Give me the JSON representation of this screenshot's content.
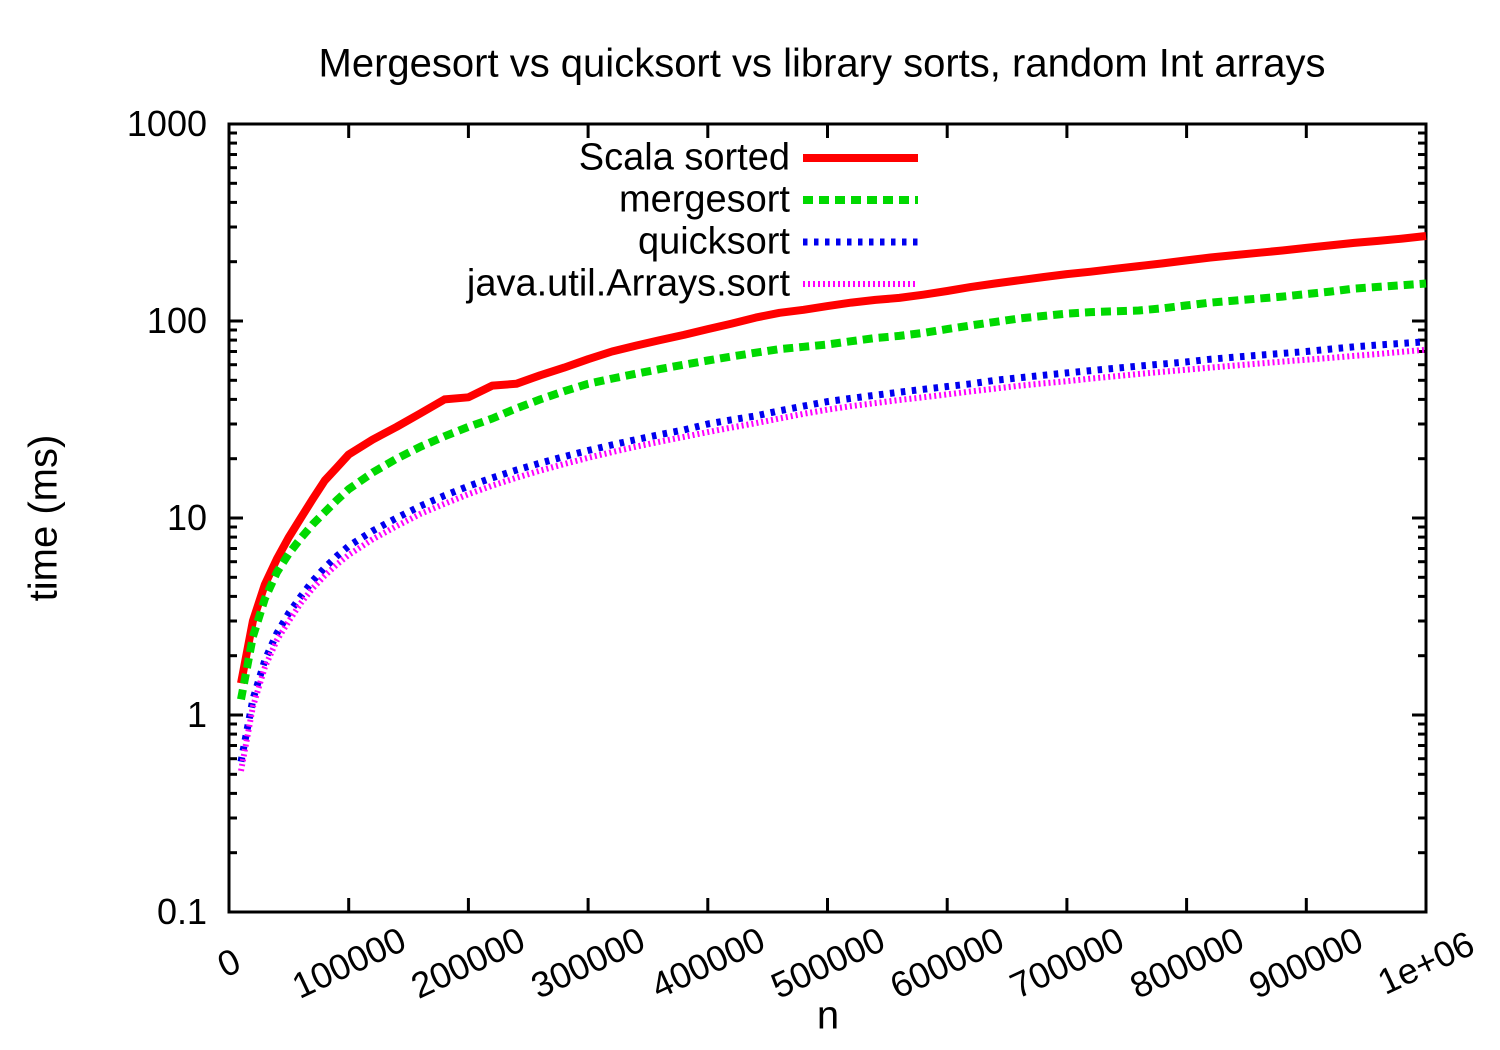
{
  "chart_data": {
    "type": "line",
    "title": "Mergesort vs quicksort vs library sorts, random Int arrays",
    "xlabel": "n",
    "ylabel": "time (ms)",
    "grid": false,
    "legend_position": "inside top, right of center, labels left of line samples",
    "x_axis": {
      "scale": "linear",
      "min": 0,
      "max": 1000000,
      "ticks": [
        0,
        100000,
        200000,
        300000,
        400000,
        500000,
        600000,
        700000,
        800000,
        900000,
        1000000
      ],
      "tick_labels": [
        "0",
        "100000",
        "200000",
        "300000",
        "400000",
        "500000",
        "600000",
        "700000",
        "800000",
        "900000",
        "1e+06"
      ]
    },
    "y_axis": {
      "scale": "log",
      "min": 0.1,
      "max": 1000,
      "ticks": [
        1000,
        100,
        10,
        1,
        0.1
      ],
      "tick_labels": [
        "1000",
        "100",
        "10",
        "1",
        "0.1"
      ],
      "minor_ticks": "logarithmic 2-9 within each decade"
    },
    "x": [
      10000,
      20000,
      30000,
      40000,
      50000,
      60000,
      70000,
      80000,
      90000,
      100000,
      120000,
      140000,
      160000,
      180000,
      200000,
      220000,
      240000,
      260000,
      280000,
      300000,
      320000,
      340000,
      360000,
      380000,
      400000,
      420000,
      440000,
      460000,
      480000,
      500000,
      520000,
      540000,
      560000,
      580000,
      600000,
      620000,
      640000,
      660000,
      680000,
      700000,
      720000,
      740000,
      760000,
      780000,
      800000,
      820000,
      840000,
      860000,
      880000,
      900000,
      920000,
      940000,
      960000,
      980000,
      1000000
    ],
    "series": [
      {
        "name": "Scala sorted",
        "color": "#ff0000",
        "style": "solid",
        "dash": "",
        "width": 8,
        "values": [
          1.45,
          3.0,
          4.6,
          6.2,
          8.0,
          10.0,
          12.5,
          15.5,
          18.0,
          21.0,
          25,
          29,
          34,
          40,
          41,
          47,
          48,
          53,
          58,
          64,
          70,
          75,
          80,
          85,
          91,
          97,
          104,
          110,
          114,
          119,
          124,
          128,
          131,
          136,
          142,
          149,
          155,
          161,
          167,
          173,
          178,
          184,
          190,
          196,
          203,
          210,
          216,
          222,
          228,
          235,
          242,
          249,
          255,
          262,
          270
        ]
      },
      {
        "name": "mergesort",
        "color": "#00d900",
        "style": "dashed",
        "dash": "10 6",
        "width": 8,
        "values": [
          1.2,
          2.5,
          3.9,
          5.3,
          6.6,
          7.9,
          9.3,
          10.7,
          12.3,
          14.0,
          17,
          20,
          23,
          26,
          29,
          32,
          36,
          40,
          44,
          48,
          51,
          54,
          57,
          60,
          63,
          66,
          69,
          72,
          74,
          76,
          79,
          82,
          84,
          87,
          91,
          95,
          99,
          103,
          106,
          109,
          111,
          112,
          113,
          116,
          120,
          124,
          127,
          130,
          133,
          137,
          141,
          146,
          149,
          152,
          155
        ]
      },
      {
        "name": "quicksort",
        "color": "#0000ee",
        "style": "dotted",
        "dash": "4.5 6.5",
        "width": 7,
        "values": [
          0.58,
          1.2,
          1.9,
          2.6,
          3.3,
          4.0,
          4.8,
          5.6,
          6.4,
          7.2,
          8.6,
          10,
          11.5,
          13,
          14.5,
          16,
          17.5,
          19,
          20.5,
          22,
          23.5,
          25,
          26.5,
          28,
          30,
          31.5,
          33,
          35,
          37,
          39,
          40.5,
          42,
          43.5,
          45,
          46.5,
          48,
          50,
          51.5,
          53,
          54.5,
          56,
          57.5,
          59,
          60.5,
          62,
          64,
          65.5,
          67,
          68.5,
          70,
          72,
          74,
          75.5,
          77,
          78.5
        ]
      },
      {
        "name": "java.util.Arrays.sort",
        "color": "#ff00ff",
        "style": "fine-dotted",
        "dash": "2 3",
        "width": 6,
        "values": [
          0.52,
          1.1,
          1.75,
          2.4,
          3.0,
          3.7,
          4.4,
          5.1,
          5.8,
          6.5,
          7.8,
          9.1,
          10.5,
          11.8,
          13.2,
          14.6,
          16,
          17.4,
          18.8,
          20.2,
          21.6,
          23,
          24.4,
          25.8,
          27.3,
          28.8,
          30.3,
          32,
          33.8,
          35.5,
          37,
          38.3,
          39.7,
          41,
          42.4,
          43.9,
          45.4,
          46.9,
          48.2,
          49.5,
          51,
          52.4,
          53.8,
          55.2,
          56.6,
          58,
          59.4,
          60.8,
          62.2,
          63.6,
          65,
          66.5,
          68,
          69.8,
          71.5
        ]
      }
    ]
  }
}
